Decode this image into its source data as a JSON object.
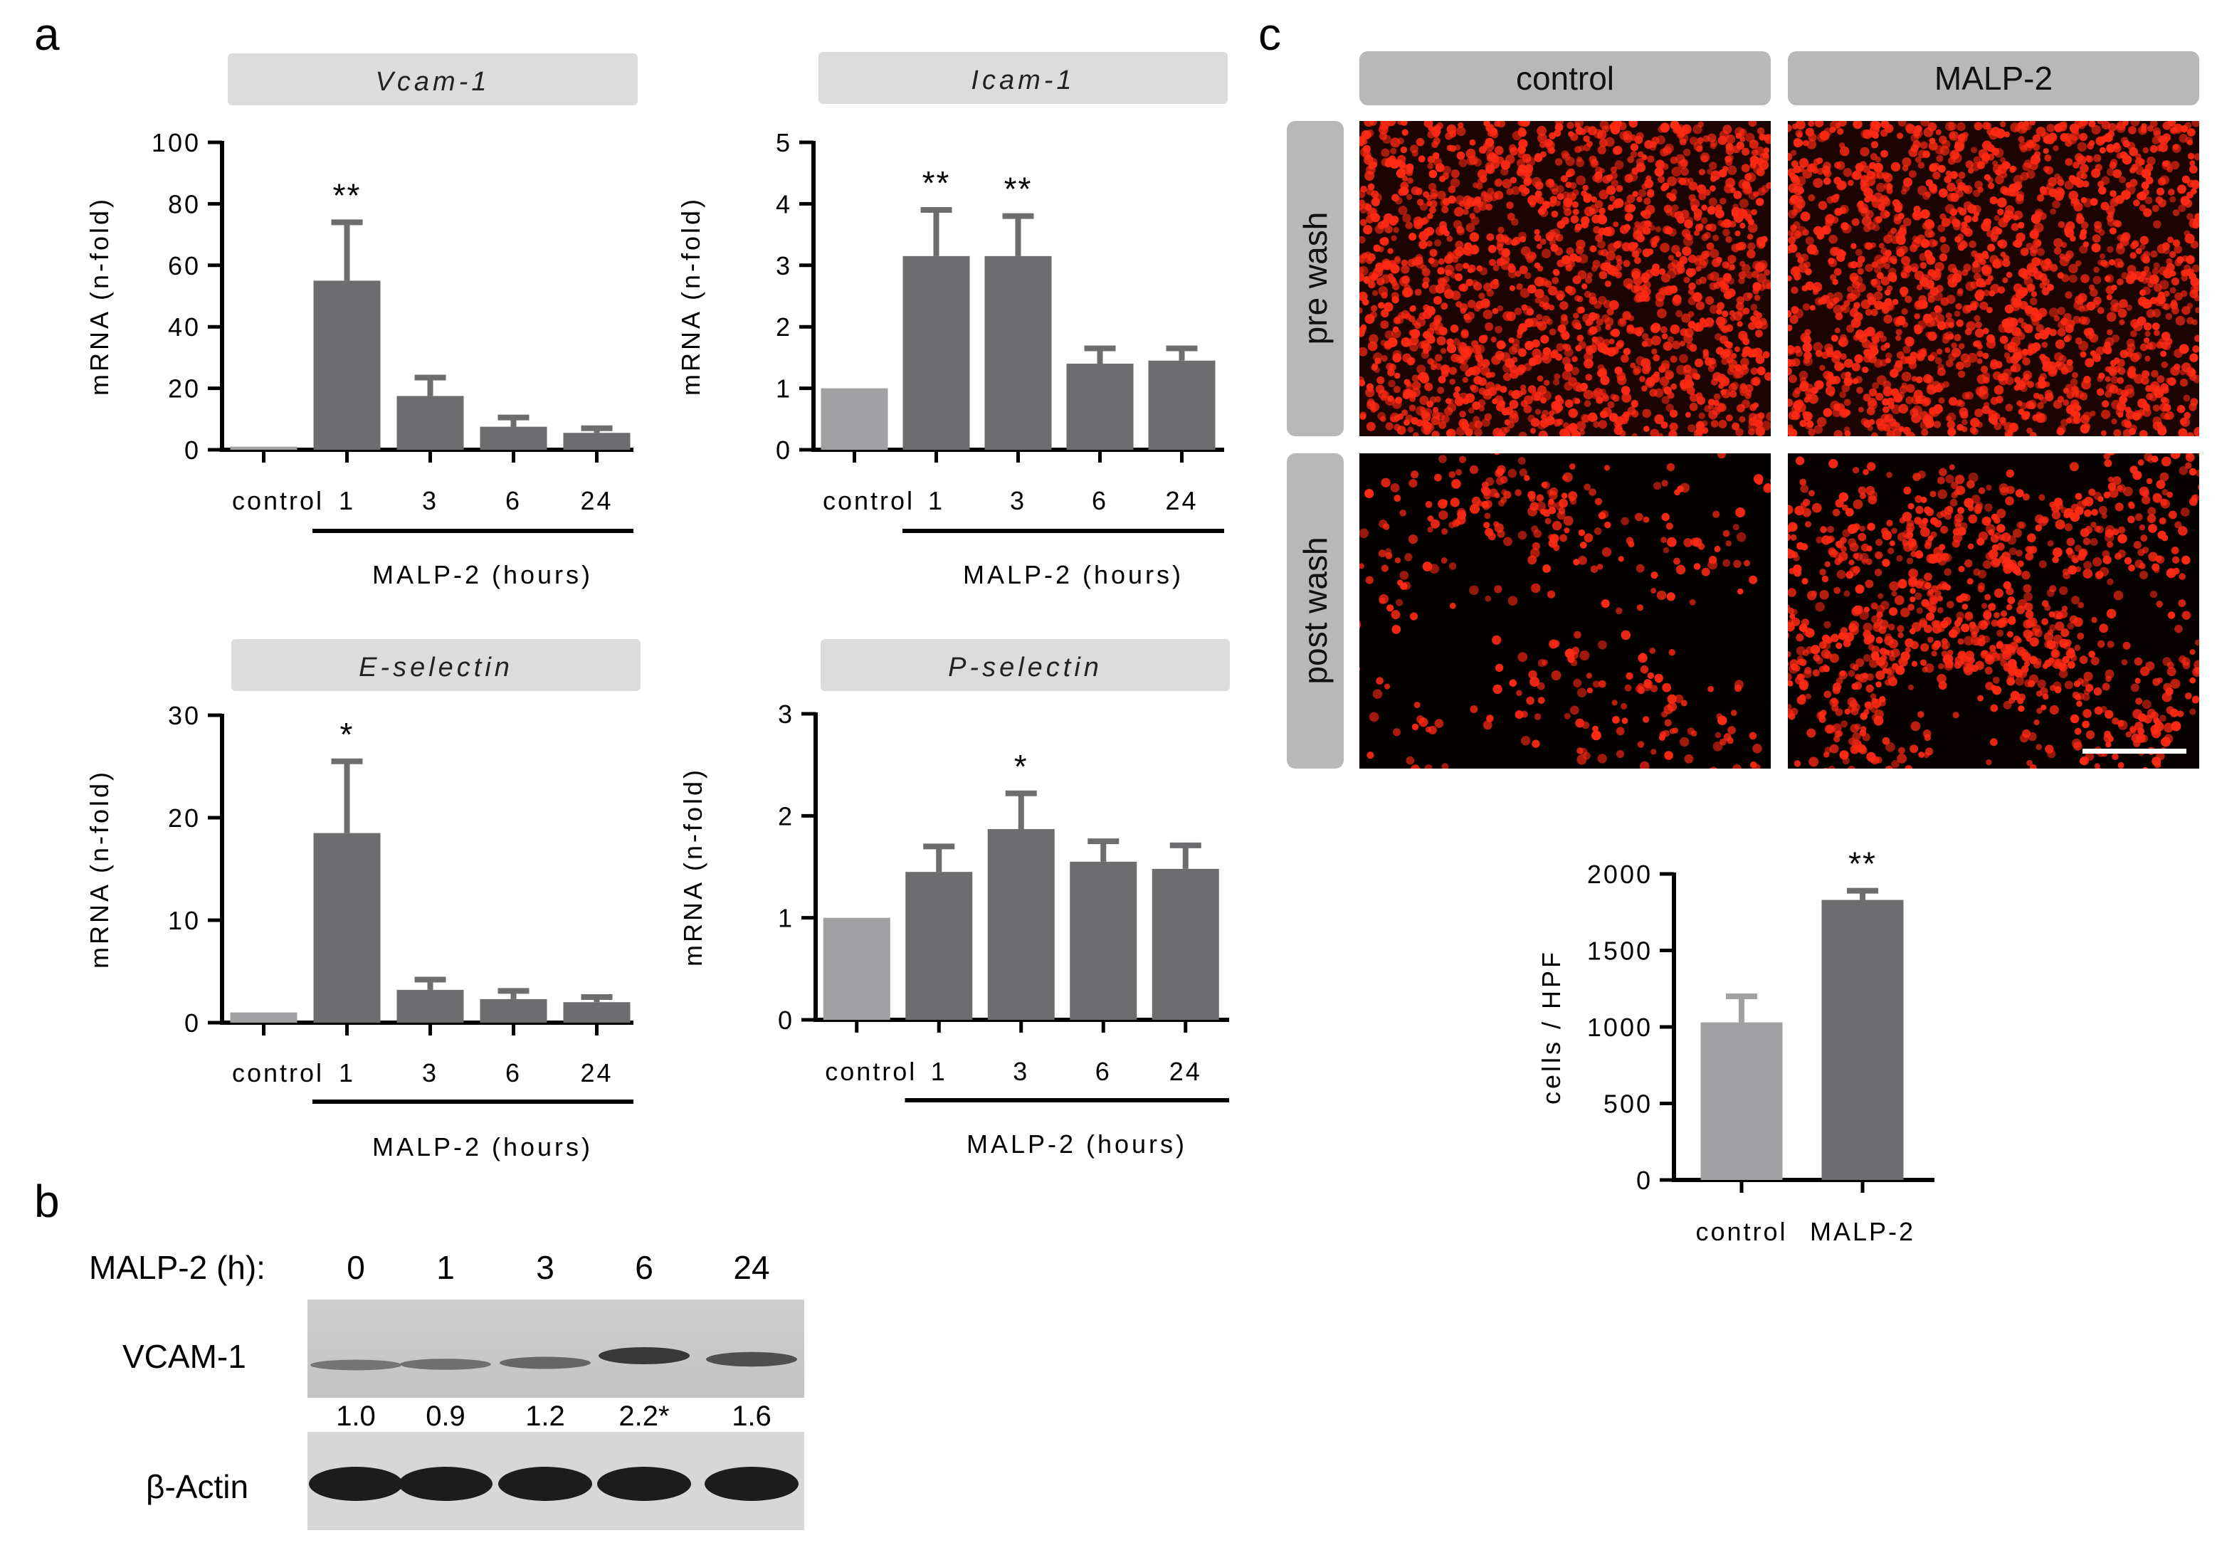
{
  "panels": {
    "a": "a",
    "b": "b",
    "c": "c"
  },
  "colors": {
    "control_bar": "#a1a1a3",
    "treated_bar": "#6d6d6f",
    "title_box": "#dcdcdc",
    "micro_header": "#b8b8b8",
    "fluorescence": "#ff2a14"
  },
  "chart_data": [
    {
      "id": "vcam",
      "type": "bar",
      "title": "Vcam-1",
      "ylabel": "mRNA (n-fold)",
      "ylim": [
        0,
        100
      ],
      "yticks": [
        "0",
        "20",
        "40",
        "60",
        "80",
        "100"
      ],
      "categories": [
        "control",
        "1",
        "3",
        "6",
        "24"
      ],
      "values": [
        1,
        55,
        17.5,
        7.5,
        5.5
      ],
      "errors": [
        0,
        19,
        6,
        3,
        1.5
      ],
      "significance": [
        "",
        "**",
        "",
        "",
        ""
      ],
      "group_label": "MALP-2 (hours)"
    },
    {
      "id": "icam",
      "type": "bar",
      "title": "Icam-1",
      "ylabel": "mRNA (n-fold)",
      "ylim": [
        0,
        5
      ],
      "yticks": [
        "0",
        "1",
        "2",
        "3",
        "4",
        "5"
      ],
      "categories": [
        "control",
        "1",
        "3",
        "6",
        "24"
      ],
      "values": [
        1,
        3.15,
        3.15,
        1.4,
        1.45
      ],
      "errors": [
        0,
        0.75,
        0.65,
        0.25,
        0.2
      ],
      "significance": [
        "",
        "**",
        "**",
        "",
        ""
      ],
      "group_label": "MALP-2 (hours)"
    },
    {
      "id": "esel",
      "type": "bar",
      "title": "E-selectin",
      "ylabel": "mRNA (n-fold)",
      "ylim": [
        0,
        30
      ],
      "yticks": [
        "0",
        "10",
        "20",
        "30"
      ],
      "categories": [
        "control",
        "1",
        "3",
        "6",
        "24"
      ],
      "values": [
        1,
        18.5,
        3.2,
        2.3,
        2.0
      ],
      "errors": [
        0,
        7,
        1,
        0.8,
        0.5
      ],
      "significance": [
        "",
        "*",
        "",
        "",
        ""
      ],
      "group_label": "MALP-2 (hours)"
    },
    {
      "id": "psel",
      "type": "bar",
      "title": "P-selectin",
      "ylabel": "mRNA (n-fold)",
      "ylim": [
        0,
        3
      ],
      "yticks": [
        "0",
        "1",
        "2",
        "3"
      ],
      "categories": [
        "control",
        "1",
        "3",
        "6",
        "24"
      ],
      "values": [
        1,
        1.45,
        1.87,
        1.55,
        1.48
      ],
      "errors": [
        0,
        0.25,
        0.35,
        0.2,
        0.23
      ],
      "significance": [
        "",
        "",
        "*",
        "",
        ""
      ],
      "group_label": "MALP-2 (hours)"
    },
    {
      "id": "hpf",
      "type": "bar",
      "title": "",
      "ylabel": "cells / HPF",
      "ylim": [
        0,
        2000
      ],
      "yticks": [
        "0",
        "500",
        "1000",
        "1500",
        "2000"
      ],
      "categories": [
        "control",
        "MALP-2"
      ],
      "values": [
        1030,
        1830
      ],
      "errors": [
        170,
        60
      ],
      "significance": [
        "",
        "**"
      ],
      "group_label": ""
    }
  ],
  "western_blot": {
    "header_label": "MALP-2 (h):",
    "timepoints": [
      "0",
      "1",
      "3",
      "6",
      "24"
    ],
    "protein_label": "VCAM-1",
    "quantification": [
      "1.0",
      "0.9",
      "1.2",
      "2.2*",
      "1.6"
    ],
    "band_intensity": [
      0.35,
      0.4,
      0.5,
      1.0,
      0.75
    ],
    "loading_control_label": "β-Actin"
  },
  "microscopy": {
    "column_headers": [
      "control",
      "MALP-2"
    ],
    "row_headers": [
      "pre wash",
      "post wash"
    ],
    "cell_density": {
      "pre_wash_control": 1.0,
      "pre_wash_malp2": 1.0,
      "post_wash_control": 0.22,
      "post_wash_malp2": 0.65
    }
  }
}
